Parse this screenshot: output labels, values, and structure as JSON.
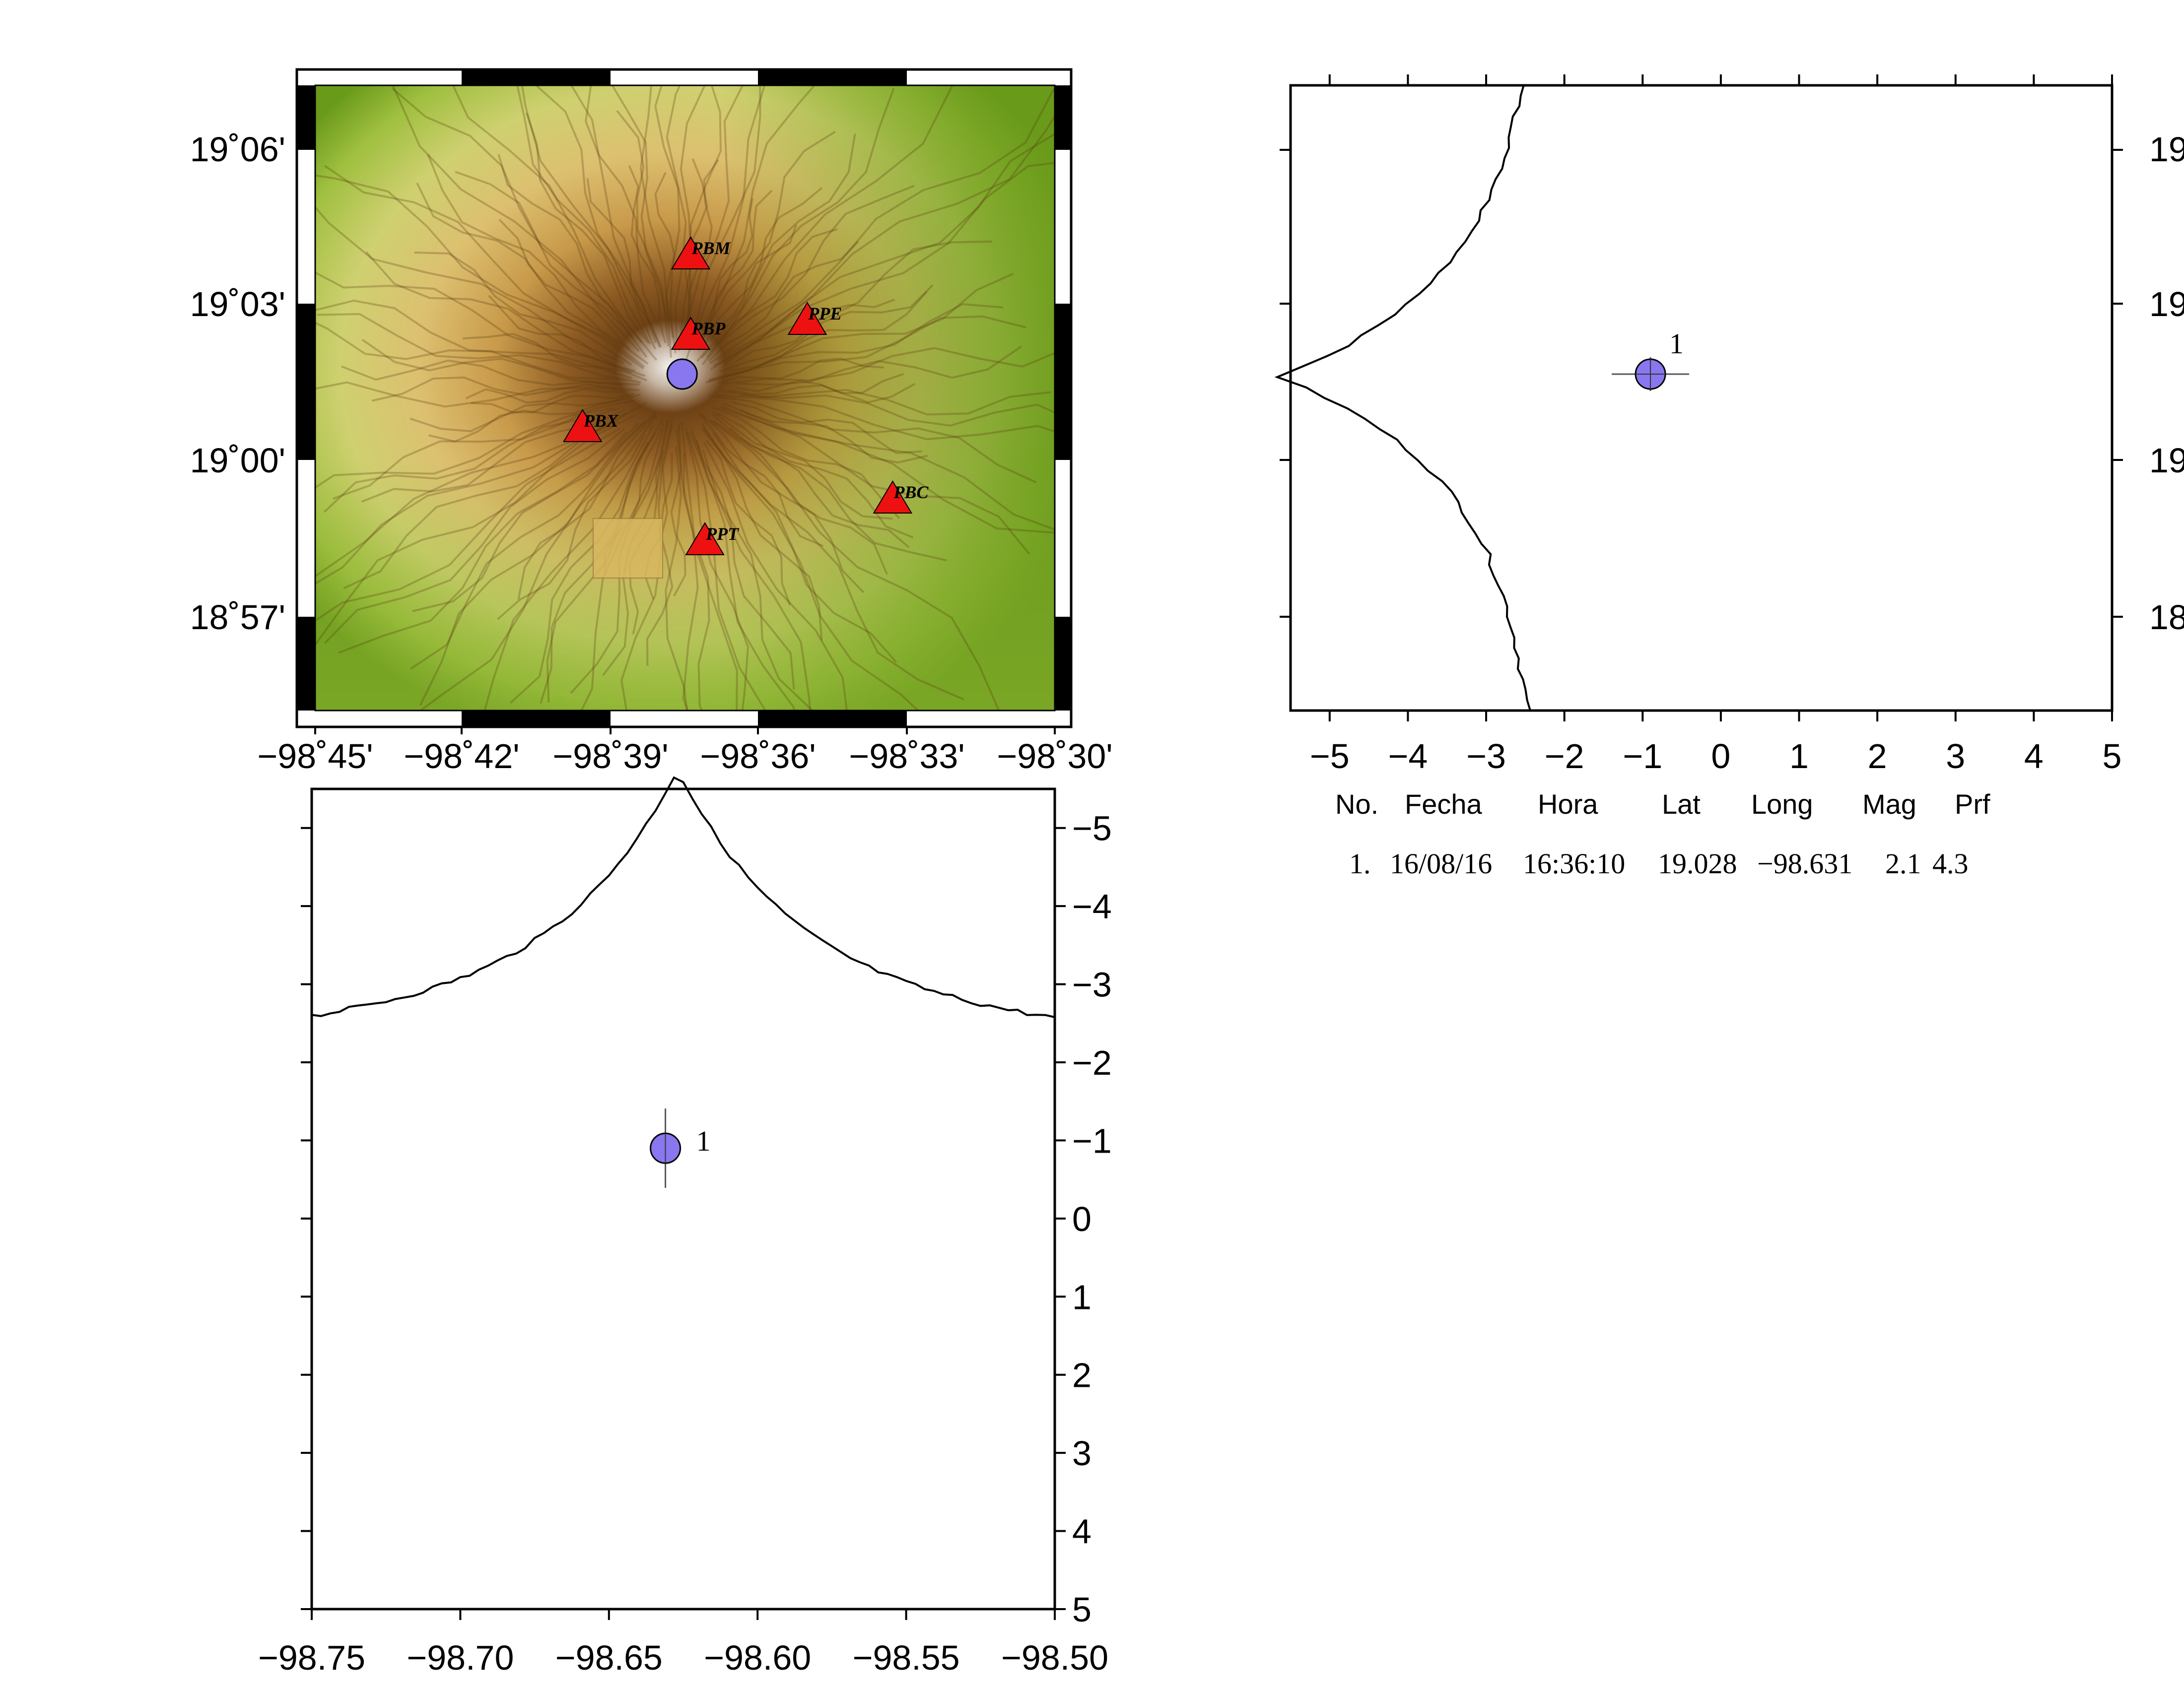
{
  "colors": {
    "station": "#ee1111",
    "event": "#8877ee",
    "relief_low": "#6a9a1a",
    "relief_mid": "#d8b860",
    "relief_high": "#7a4a1a",
    "summit": "#f4f2ee"
  },
  "chart_data": [
    {
      "type": "scatter",
      "panel": "map",
      "x_ticks": [
        "−98˚45'",
        "−98˚42'",
        "−98˚39'",
        "−98˚36'",
        "−98˚33'",
        "−98˚30'"
      ],
      "y_ticks": [
        "19˚06'",
        "19˚03'",
        "19˚00'",
        "18˚57'"
      ],
      "xlim": [
        -98.76,
        -98.5
      ],
      "ylim": [
        18.915,
        19.125
      ],
      "stations": [
        {
          "name": "PBM",
          "lon": -98.628,
          "lat": 19.068
        },
        {
          "name": "PBP",
          "lon": -98.628,
          "lat": 19.041
        },
        {
          "name": "PPE",
          "lon": -98.587,
          "lat": 19.046
        },
        {
          "name": "PBX",
          "lon": -98.666,
          "lat": 19.01
        },
        {
          "name": "PBC",
          "lon": -98.557,
          "lat": 18.986
        },
        {
          "name": "PPT",
          "lon": -98.623,
          "lat": 18.972
        }
      ],
      "events": [
        {
          "lon": -98.631,
          "lat": 19.028
        }
      ]
    },
    {
      "type": "scatter",
      "panel": "latitude-depth",
      "x_ticks": [
        "−5",
        "−4",
        "−3",
        "−2",
        "−1",
        "0",
        "1",
        "2",
        "3",
        "4",
        "5"
      ],
      "xlim": [
        -5.5,
        5
      ],
      "y_ticks": [
        "19",
        "19",
        "19",
        "18"
      ],
      "events": [
        {
          "label": "1",
          "depth": -0.9,
          "lat": 19.028
        }
      ]
    },
    {
      "type": "scatter",
      "panel": "longitude-depth",
      "x_ticks": [
        "−98.75",
        "−98.70",
        "−98.65",
        "−98.60",
        "−98.55",
        "−98.50"
      ],
      "xlim": [
        -98.75,
        -98.5
      ],
      "y_ticks": [
        "−5",
        "−4",
        "−3",
        "−2",
        "−1",
        "0",
        "1",
        "2",
        "3",
        "4",
        "5"
      ],
      "ylim": [
        -5.5,
        5
      ],
      "events": [
        {
          "label": "1",
          "lon": -98.631,
          "depth": -0.9
        }
      ]
    }
  ],
  "catalog": {
    "headers": [
      "No.",
      "Fecha",
      "Hora",
      "Lat",
      "Long",
      "Mag",
      "Prf"
    ],
    "rows": [
      [
        "1.",
        "16/08/16",
        "16:36:10",
        "19.028",
        "−98.631",
        "2.1",
        "4.3"
      ]
    ]
  }
}
